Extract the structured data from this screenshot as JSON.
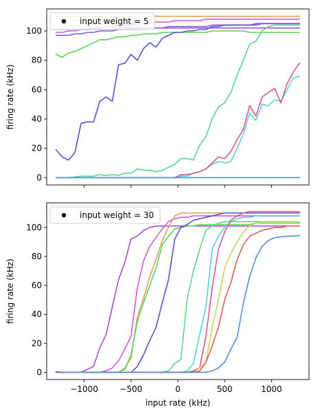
{
  "chart_data": [
    {
      "type": "line",
      "xlabel": "",
      "ylabel": "firing rate (kHz)",
      "xlim": [
        -1400,
        1400
      ],
      "ylim": [
        -5,
        115
      ],
      "xticks": [
        -1000,
        -500,
        0,
        500,
        1000
      ],
      "xtick_labels": [],
      "yticks": [
        0,
        20,
        40,
        60,
        80,
        100
      ],
      "ytick_labels": [
        "0",
        "20",
        "40",
        "60",
        "80",
        "100"
      ],
      "legend": {
        "placement": "upper-left",
        "entries": [
          {
            "label": "input weight = 5",
            "marker": "dot"
          }
        ]
      },
      "x": [
        -1300,
        -1233,
        -1166,
        -1100,
        -1033,
        -966,
        -900,
        -833,
        -766,
        -700,
        -633,
        -566,
        -500,
        -433,
        -366,
        -300,
        -233,
        -166,
        -100,
        -33,
        33,
        100,
        166,
        233,
        300,
        366,
        433,
        500,
        566,
        633,
        700,
        766,
        833,
        900,
        966,
        1033,
        1100,
        1166,
        1233,
        1300
      ],
      "series": [
        {
          "color": "#d9a15a",
          "values": [
            110,
            110,
            110,
            110,
            110,
            110,
            110,
            110,
            110,
            110,
            110,
            110,
            110,
            110,
            110,
            110,
            110,
            110,
            110,
            110,
            110,
            110,
            110,
            110,
            110,
            110,
            110,
            110,
            110,
            110,
            110,
            110,
            110,
            110,
            110,
            110,
            110,
            110,
            110,
            110
          ]
        },
        {
          "color": "#d35bd3",
          "values": [
            99,
            99,
            100,
            100,
            101,
            101,
            102,
            102,
            103,
            103,
            104,
            104,
            104,
            105,
            105,
            105,
            106,
            106,
            106,
            107,
            107,
            107,
            107,
            107,
            108,
            108,
            108,
            108,
            108,
            108,
            108,
            108,
            108,
            108,
            108,
            108,
            108,
            108,
            108,
            108
          ]
        },
        {
          "color": "#7b5bd6",
          "values": [
            97,
            97,
            97,
            98,
            98,
            99,
            99,
            100,
            100,
            100,
            101,
            101,
            101,
            101,
            102,
            102,
            102,
            102,
            103,
            103,
            103,
            103,
            103,
            103,
            103,
            104,
            104,
            104,
            104,
            104,
            104,
            104,
            105,
            105,
            105,
            105,
            105,
            105,
            105,
            105
          ]
        },
        {
          "color": "#a04fd4",
          "values": [
            101,
            101,
            101,
            101,
            101,
            101,
            101,
            101,
            101,
            101,
            102,
            102,
            102,
            102,
            102,
            102,
            102,
            102,
            102,
            102,
            102,
            102,
            102,
            102,
            102,
            102,
            102,
            102,
            102,
            102,
            102,
            102,
            102,
            102,
            102,
            102,
            102,
            102,
            102,
            102
          ]
        },
        {
          "color": "#5bd35b",
          "values": [
            84,
            82,
            85,
            86,
            88,
            90,
            92,
            94,
            94,
            95,
            96,
            96,
            97,
            97,
            98,
            98,
            98,
            99,
            99,
            99,
            99,
            99,
            99,
            99,
            99,
            100,
            100,
            100,
            100,
            100,
            100,
            99,
            99,
            99,
            99,
            99,
            99,
            99,
            99,
            99
          ]
        },
        {
          "color": "#5552cf",
          "values": [
            19,
            14,
            12,
            17,
            37,
            38,
            38,
            52,
            55,
            52,
            77,
            78,
            84,
            80,
            88,
            92,
            89,
            95,
            97,
            99,
            99,
            100,
            100,
            101,
            101,
            103,
            103,
            104,
            104,
            104,
            104,
            104,
            104,
            105,
            105,
            105,
            105,
            105,
            105,
            105
          ]
        },
        {
          "color": "#59d494",
          "values": [
            0,
            0,
            0,
            0.5,
            1,
            1,
            1,
            2,
            1.5,
            2,
            1.5,
            3,
            3,
            6,
            5,
            5,
            4,
            5,
            7,
            9,
            13,
            13,
            12,
            22,
            28,
            40,
            48,
            51,
            58,
            70,
            80,
            91,
            93,
            100,
            103,
            104,
            104,
            104,
            104,
            104
          ]
        },
        {
          "color": "#5bd0d6",
          "values": [
            0,
            0,
            0,
            0,
            0,
            0,
            0,
            0,
            0,
            0,
            0,
            0,
            0,
            0,
            0,
            0,
            0,
            0,
            0,
            0,
            1,
            1,
            3,
            4,
            6,
            9,
            11,
            10,
            11,
            20,
            30,
            44,
            39,
            50,
            49,
            53,
            52,
            60,
            68,
            69
          ]
        },
        {
          "color": "#d6568a",
          "values": [
            0,
            0,
            0,
            0,
            0,
            0,
            0,
            0,
            0,
            0,
            0,
            0,
            0,
            0,
            0,
            0,
            0,
            0,
            0,
            0,
            2,
            2,
            3,
            4,
            6,
            10,
            14,
            13,
            18,
            26,
            33,
            49,
            42,
            55,
            58,
            61,
            51,
            64,
            72,
            78
          ]
        },
        {
          "color": "#4f90cf",
          "values": [
            0,
            0,
            0,
            0,
            0,
            0,
            0,
            0,
            0,
            0,
            0,
            0,
            0,
            0,
            0,
            0,
            0,
            0,
            0,
            0,
            0,
            0,
            0,
            0,
            0,
            0,
            0,
            0,
            0,
            0,
            0,
            0,
            0,
            0,
            0,
            0,
            0,
            0,
            0,
            0
          ]
        }
      ]
    },
    {
      "type": "line",
      "xlabel": "input rate (kHz)",
      "ylabel": "firing rate (kHz)",
      "xlim": [
        -1400,
        1400
      ],
      "ylim": [
        -5,
        117
      ],
      "xticks": [
        -1000,
        -500,
        0,
        500,
        1000
      ],
      "xtick_labels": [
        "−1000",
        "−500",
        "0",
        "500",
        "1000"
      ],
      "yticks": [
        0,
        20,
        40,
        60,
        80,
        100
      ],
      "ytick_labels": [
        "0",
        "20",
        "40",
        "60",
        "80",
        "100"
      ],
      "legend": {
        "placement": "upper-left",
        "entries": [
          {
            "label": "input weight = 30",
            "marker": "dot"
          }
        ]
      },
      "x": [
        -1300,
        -1233,
        -1166,
        -1100,
        -1033,
        -966,
        -900,
        -833,
        -766,
        -700,
        -633,
        -566,
        -500,
        -433,
        -366,
        -300,
        -233,
        -166,
        -100,
        -33,
        33,
        100,
        166,
        233,
        300,
        366,
        433,
        500,
        566,
        633,
        700,
        766,
        833,
        900,
        966,
        1033,
        1100,
        1166,
        1233,
        1300
      ],
      "series": [
        {
          "color": "#a04fd4",
          "values": [
            0.5,
            0,
            0,
            0,
            0,
            2,
            4,
            17,
            26,
            45,
            64,
            76,
            92,
            94,
            98,
            100,
            101,
            101,
            101,
            101,
            101,
            101,
            101,
            101,
            101,
            101,
            101,
            101,
            101,
            101,
            101,
            101,
            101,
            101,
            101,
            101,
            101,
            101,
            101,
            101
          ]
        },
        {
          "color": "#d35bd3",
          "values": [
            0,
            0,
            0,
            0,
            0,
            0,
            0,
            0,
            1,
            3,
            8,
            16,
            25,
            58,
            77,
            87,
            93,
            99,
            104,
            106,
            107,
            107,
            108,
            108,
            108,
            108,
            108,
            108,
            108,
            108,
            108,
            108,
            108,
            108,
            108,
            108,
            108,
            108,
            108,
            108
          ]
        },
        {
          "color": "#d9a15a",
          "values": [
            0,
            0,
            0,
            0,
            0,
            0,
            0,
            0,
            0,
            0,
            0,
            3,
            10,
            38,
            51,
            66,
            78,
            91,
            100,
            108,
            110,
            110,
            110,
            110,
            110,
            110,
            110,
            110,
            110,
            110,
            110,
            110,
            110,
            110,
            110,
            110,
            110,
            110,
            110,
            110
          ]
        },
        {
          "color": "#5bd35b",
          "values": [
            0,
            0,
            0,
            0,
            0,
            0,
            0,
            0,
            0,
            0,
            0,
            2,
            12,
            35,
            48,
            60,
            72,
            88,
            94,
            99,
            100,
            101,
            101,
            102,
            102,
            102,
            102,
            102,
            102,
            102,
            102,
            102,
            103,
            103,
            103,
            103,
            103,
            103,
            103,
            103
          ]
        },
        {
          "color": "#5552cf",
          "values": [
            0,
            0,
            0,
            0,
            0,
            0,
            0,
            0,
            0,
            0,
            0,
            0,
            0,
            4,
            12,
            22,
            31,
            48,
            64,
            92,
            100,
            102,
            105,
            106,
            107,
            108,
            109,
            110,
            110,
            110,
            110,
            110,
            110,
            110,
            110,
            110,
            110,
            110,
            110,
            110
          ]
        },
        {
          "color": "#59d494",
          "values": [
            0,
            0,
            0,
            0,
            0,
            0,
            0,
            0,
            0,
            0,
            0,
            0,
            0,
            0,
            0,
            0,
            0,
            0,
            1,
            6,
            9,
            51,
            70,
            85,
            98,
            101,
            103,
            104,
            104,
            104,
            104,
            104,
            104,
            104,
            104,
            104,
            104,
            104,
            104,
            104
          ]
        },
        {
          "color": "#5bd0d6",
          "values": [
            0,
            0,
            0,
            0,
            0,
            0,
            0,
            0,
            0,
            0,
            0,
            0,
            0,
            0,
            0,
            0,
            0,
            0,
            0,
            0,
            0,
            1,
            6,
            26,
            45,
            85,
            94,
            100,
            104,
            106,
            107,
            107,
            108,
            108,
            108,
            108,
            108,
            108,
            108,
            108
          ]
        },
        {
          "color": "#d6568a",
          "values": [
            0,
            0,
            0,
            0,
            0,
            0,
            0,
            0,
            0,
            0,
            0,
            0,
            0,
            0,
            0,
            0,
            0,
            0,
            0,
            0,
            0,
            0,
            1,
            3,
            25,
            58,
            85,
            97,
            105,
            108,
            110,
            111,
            111,
            111,
            111,
            111,
            111,
            111,
            111,
            111
          ]
        },
        {
          "color": "#c6d45b",
          "values": [
            0,
            0,
            0,
            0,
            0,
            0,
            0,
            0,
            0,
            0,
            0,
            0,
            0,
            0,
            0,
            0,
            0,
            0,
            0,
            0,
            0,
            0,
            0,
            3,
            7,
            31,
            50,
            72,
            82,
            90,
            97,
            101,
            103,
            104,
            104,
            104,
            104,
            104,
            104,
            104
          ]
        },
        {
          "color": "#de6055",
          "values": [
            0,
            0,
            0,
            0,
            0,
            0,
            0,
            0,
            0,
            0,
            0,
            0,
            0,
            0,
            0,
            0,
            0,
            0,
            0,
            0,
            0,
            0,
            0,
            1,
            7,
            18,
            31,
            50,
            62,
            78,
            88,
            94,
            96,
            98,
            99,
            100,
            100,
            101,
            101,
            101
          ]
        },
        {
          "color": "#4f90cf",
          "values": [
            0,
            0,
            0,
            0,
            0,
            0,
            0,
            0,
            0,
            0,
            0,
            0,
            0,
            0,
            0,
            0,
            0,
            0,
            0,
            0,
            0,
            0,
            0,
            0,
            0,
            1,
            3,
            7,
            16,
            24,
            48,
            66,
            79,
            87,
            91,
            93,
            93.5,
            94,
            94,
            94.5
          ]
        }
      ]
    }
  ]
}
